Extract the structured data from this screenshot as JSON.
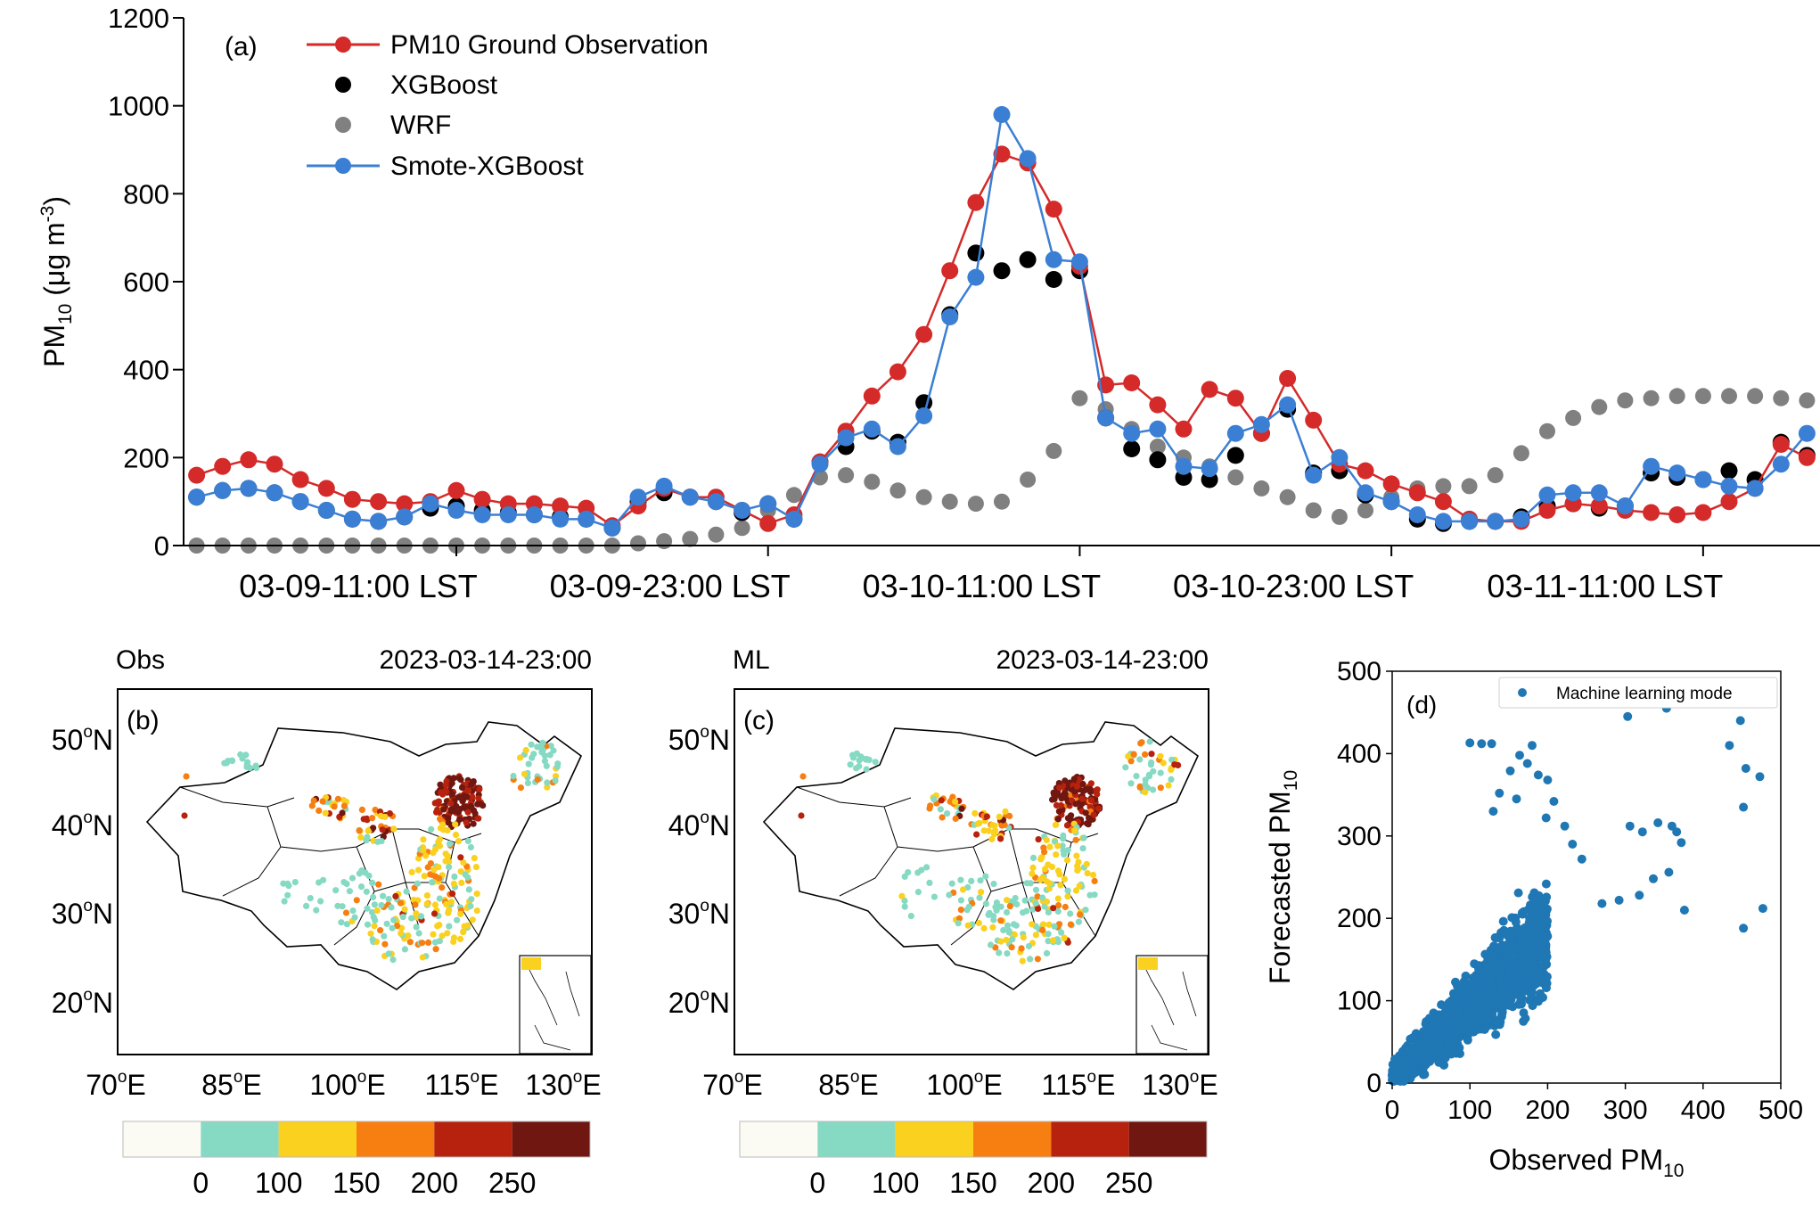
{
  "chart_data": [
    {
      "panel": "(a)",
      "type": "line",
      "ylabel": {
        "main": "PM",
        "sub": "10",
        "unit": " (μg m",
        "sup": "-3",
        "close": ")"
      },
      "ylim": [
        0,
        1200
      ],
      "yticks": [
        0,
        200,
        400,
        600,
        800,
        1000,
        1200
      ],
      "xticks": [
        "03-09-11:00 LST",
        "03-09-23:00 LST",
        "03-10-11:00 LST",
        "03-10-23:00 LST",
        "03-11-11:00 LST"
      ],
      "xtick_index": [
        10,
        22,
        34,
        46,
        58
      ],
      "legend": [
        "PM10 Ground Observation",
        "XGBoost",
        "WRF",
        "Smote-XGBoost"
      ],
      "colors": {
        "obs": "#d42a2a",
        "xgb": "#000000",
        "wrf": "#808080",
        "smote": "#3b7fd4"
      },
      "grid": false,
      "legend_position": "top-left",
      "series": [
        {
          "name": "PM10 Ground Observation",
          "values": [
            160,
            180,
            195,
            185,
            150,
            130,
            105,
            100,
            95,
            100,
            125,
            105,
            95,
            95,
            90,
            85,
            45,
            90,
            130,
            110,
            110,
            80,
            50,
            70,
            190,
            260,
            340,
            395,
            480,
            625,
            780,
            890,
            870,
            765,
            635,
            365,
            370,
            320,
            265,
            355,
            335,
            255,
            380,
            285,
            185,
            170,
            140,
            120,
            100,
            60,
            55,
            55,
            80,
            95,
            90,
            80,
            75,
            70,
            75,
            100,
            130,
            230,
            200
          ]
        },
        {
          "name": "XGBoost",
          "values": [
            110,
            125,
            130,
            120,
            100,
            80,
            60,
            55,
            65,
            85,
            90,
            80,
            75,
            70,
            65,
            60,
            40,
            100,
            120,
            110,
            100,
            75,
            95,
            60,
            190,
            225,
            260,
            235,
            325,
            525,
            665,
            625,
            650,
            605,
            625,
            290,
            220,
            195,
            155,
            150,
            205,
            255,
            310,
            165,
            170,
            115,
            100,
            60,
            50,
            55,
            55,
            65,
            90,
            95,
            85,
            90,
            165,
            155,
            150,
            170,
            150,
            235,
            205
          ]
        },
        {
          "name": "WRF",
          "values": [
            0,
            0,
            0,
            0,
            0,
            0,
            0,
            0,
            0,
            0,
            0,
            0,
            0,
            0,
            0,
            0,
            0,
            5,
            10,
            15,
            25,
            40,
            80,
            115,
            155,
            160,
            145,
            125,
            110,
            100,
            95,
            100,
            150,
            215,
            335,
            310,
            265,
            225,
            200,
            180,
            155,
            130,
            110,
            80,
            65,
            80,
            110,
            130,
            135,
            135,
            160,
            210,
            260,
            290,
            315,
            330,
            335,
            340,
            340,
            340,
            340,
            335,
            330
          ]
        },
        {
          "name": "Smote-XGBoost",
          "values": [
            110,
            125,
            130,
            120,
            100,
            80,
            60,
            55,
            65,
            95,
            80,
            70,
            70,
            70,
            60,
            60,
            40,
            110,
            135,
            110,
            100,
            80,
            95,
            60,
            185,
            245,
            265,
            225,
            295,
            520,
            610,
            980,
            880,
            650,
            645,
            290,
            255,
            265,
            180,
            175,
            255,
            275,
            320,
            160,
            200,
            120,
            100,
            70,
            55,
            55,
            55,
            60,
            115,
            120,
            120,
            90,
            180,
            165,
            150,
            135,
            130,
            185,
            255
          ]
        }
      ]
    },
    {
      "panel": "(b)",
      "type": "map",
      "left_title": "Obs",
      "right_title": "2023-03-14-23:00",
      "lat_ticks": [
        {
          "deg": "50",
          "hemi": "N"
        },
        {
          "deg": "40",
          "hemi": "N"
        },
        {
          "deg": "30",
          "hemi": "N"
        },
        {
          "deg": "20",
          "hemi": "N"
        }
      ],
      "lon_ticks": [
        {
          "deg": "70",
          "hemi": "E"
        },
        {
          "deg": "85",
          "hemi": "E"
        },
        {
          "deg": "100",
          "hemi": "E"
        },
        {
          "deg": "115",
          "hemi": "E"
        },
        {
          "deg": "130",
          "hemi": "E"
        }
      ],
      "colorbar": {
        "labels": [
          "0",
          "100",
          "150",
          "200",
          "250"
        ],
        "colors": [
          "#fbfaf3",
          "#86d9c3",
          "#fad11e",
          "#f77e10",
          "#b6220e",
          "#6f1710"
        ]
      }
    },
    {
      "panel": "(c)",
      "type": "map",
      "left_title": "ML",
      "right_title": "2023-03-14-23:00",
      "lat_ticks": [
        {
          "deg": "50",
          "hemi": "N"
        },
        {
          "deg": "40",
          "hemi": "N"
        },
        {
          "deg": "30",
          "hemi": "N"
        },
        {
          "deg": "20",
          "hemi": "N"
        }
      ],
      "lon_ticks": [
        {
          "deg": "70",
          "hemi": "E"
        },
        {
          "deg": "85",
          "hemi": "E"
        },
        {
          "deg": "100",
          "hemi": "E"
        },
        {
          "deg": "115",
          "hemi": "E"
        },
        {
          "deg": "130",
          "hemi": "E"
        }
      ],
      "colorbar": {
        "labels": [
          "0",
          "100",
          "150",
          "200",
          "250"
        ],
        "colors": [
          "#fbfaf3",
          "#86d9c3",
          "#fad11e",
          "#f77e10",
          "#b6220e",
          "#6f1710"
        ]
      }
    },
    {
      "panel": "(d)",
      "type": "scatter",
      "legend": [
        "Machine learning mode"
      ],
      "color": "#1f77b4",
      "xlabel": {
        "main": "Observed PM",
        "sub": "10"
      },
      "ylabel": {
        "main": "Forecasted PM",
        "sub": "10"
      },
      "xlim": [
        0,
        500
      ],
      "ylim": [
        0,
        500
      ],
      "xticks": [
        0,
        100,
        200,
        300,
        400,
        500
      ],
      "yticks": [
        0,
        100,
        200,
        300,
        400,
        500
      ],
      "points_outliers": [
        [
          100,
          413
        ],
        [
          115,
          412
        ],
        [
          128,
          412
        ],
        [
          303,
          445
        ],
        [
          353,
          455
        ],
        [
          372,
          472
        ],
        [
          434,
          410
        ],
        [
          448,
          440
        ],
        [
          455,
          382
        ],
        [
          473,
          372
        ],
        [
          452,
          335
        ],
        [
          452,
          188
        ],
        [
          477,
          212
        ],
        [
          306,
          312
        ],
        [
          322,
          305
        ],
        [
          342,
          316
        ],
        [
          360,
          312
        ],
        [
          366,
          305
        ],
        [
          372,
          292
        ],
        [
          336,
          248
        ],
        [
          356,
          256
        ],
        [
          376,
          210
        ],
        [
          318,
          228
        ],
        [
          292,
          222
        ],
        [
          270,
          218
        ],
        [
          164,
          398
        ],
        [
          174,
          388
        ],
        [
          180,
          410
        ],
        [
          152,
          379
        ],
        [
          188,
          374
        ],
        [
          200,
          368
        ],
        [
          160,
          345
        ],
        [
          208,
          342
        ],
        [
          138,
          352
        ],
        [
          130,
          330
        ],
        [
          198,
          322
        ],
        [
          222,
          312
        ],
        [
          232,
          290
        ],
        [
          244,
          272
        ]
      ]
    }
  ]
}
